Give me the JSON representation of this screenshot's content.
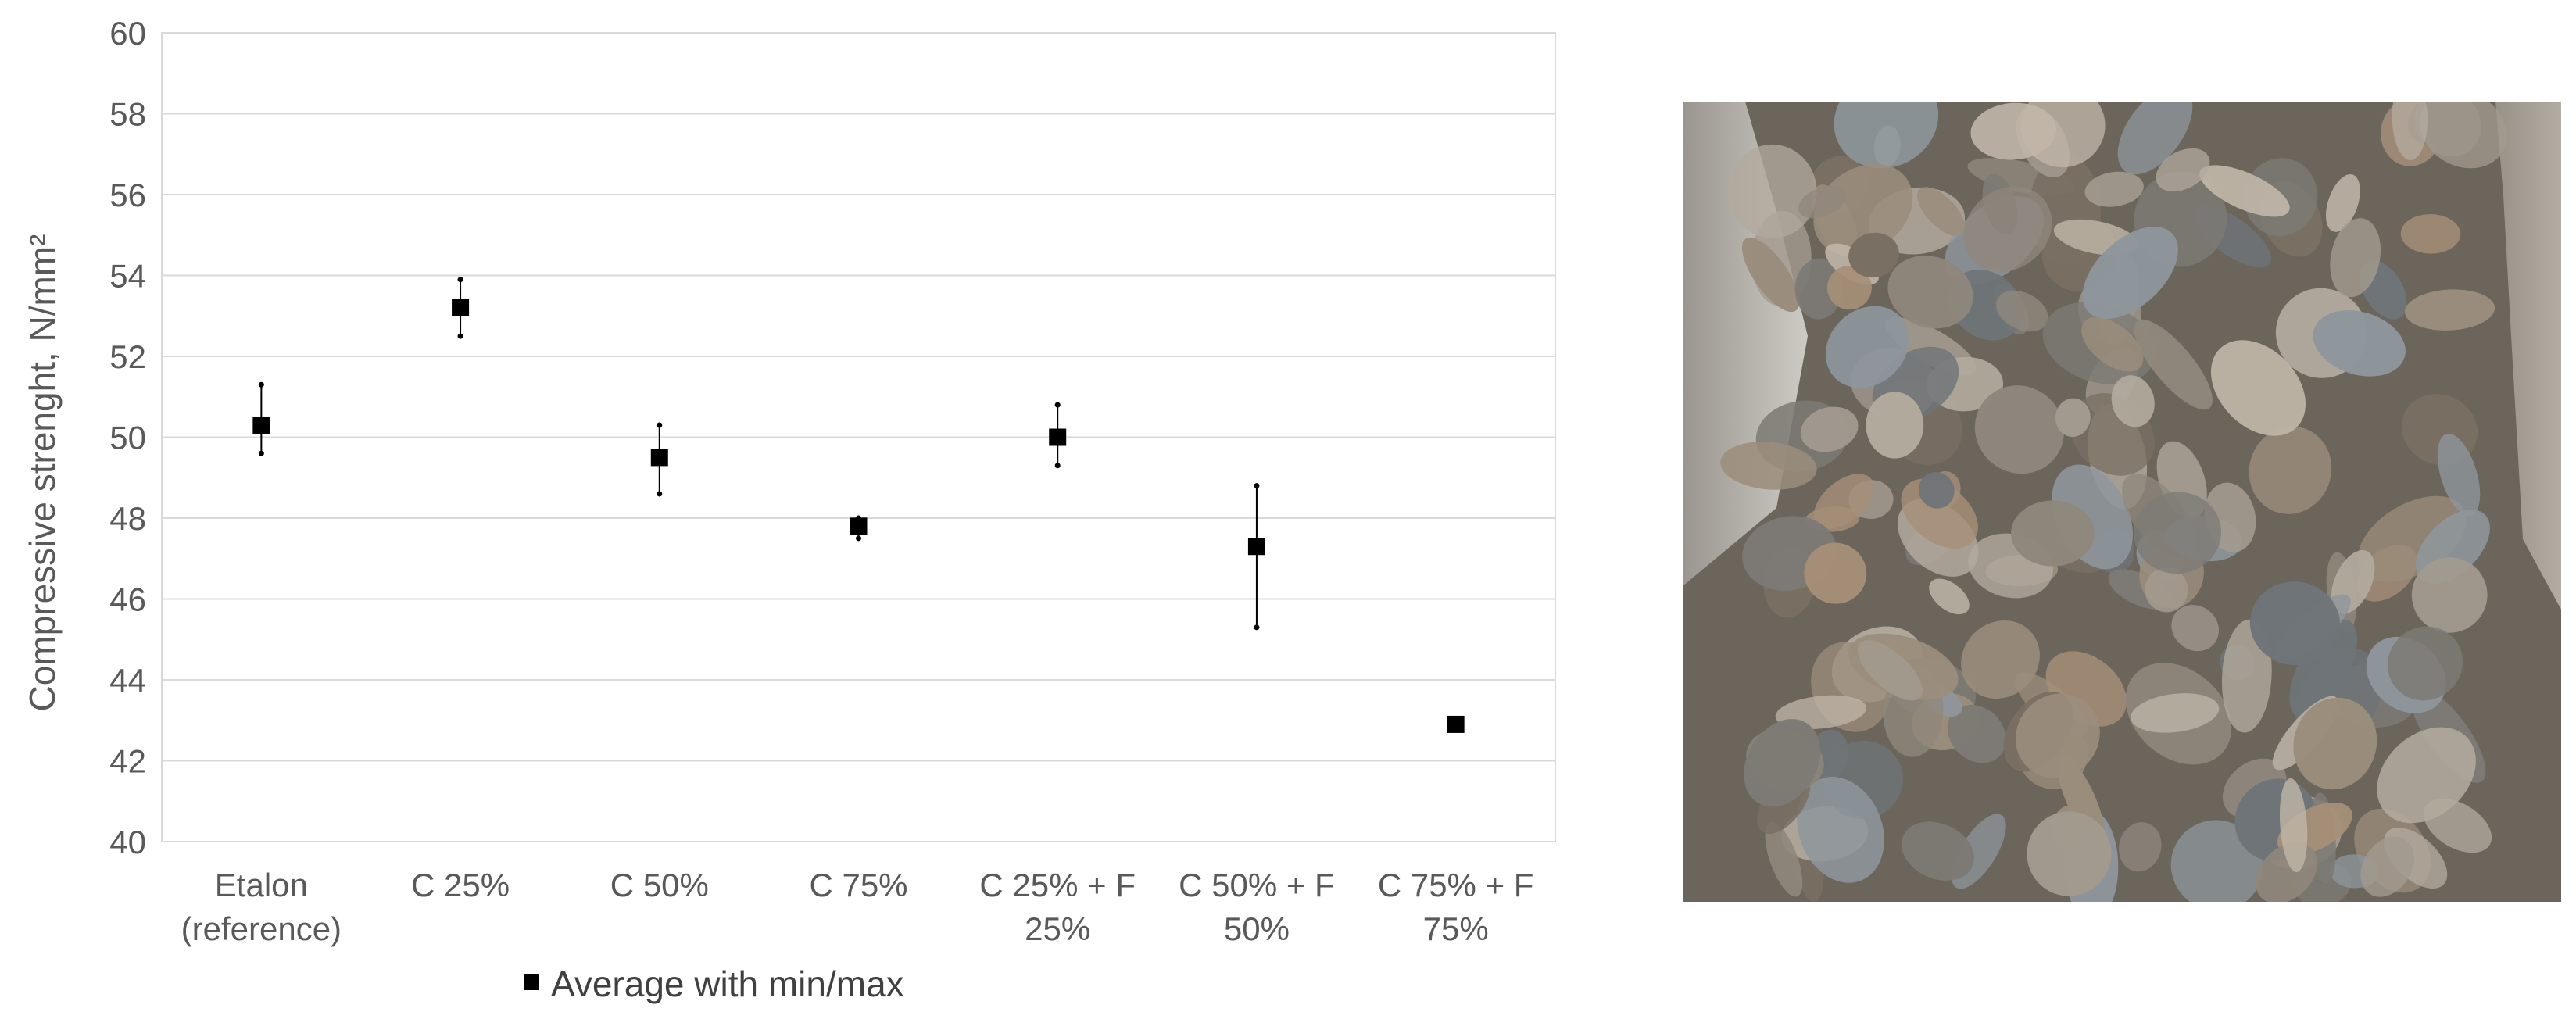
{
  "chart_data": {
    "type": "scatter",
    "title": "",
    "xlabel": "",
    "ylabel": "Compressive strenght, N/mm²",
    "ylim": [
      40,
      60
    ],
    "yticks": [
      40,
      42,
      44,
      46,
      48,
      50,
      52,
      54,
      56,
      58,
      60
    ],
    "grid": true,
    "legend_position": "bottom",
    "categories": [
      [
        "Etalon",
        "(reference)"
      ],
      [
        "C 25%"
      ],
      [
        "C 50%"
      ],
      [
        "C 75%"
      ],
      [
        "C 25% + F",
        "25%"
      ],
      [
        "C 50% + F",
        "50%"
      ],
      [
        "C 75% + F",
        "75%"
      ]
    ],
    "series": [
      {
        "name": "Average with min/max",
        "marker": "square",
        "color": "#000000",
        "values": [
          50.3,
          53.2,
          49.5,
          47.8,
          50.0,
          47.3,
          42.9
        ],
        "min": [
          49.6,
          52.5,
          48.6,
          47.5,
          49.3,
          45.3,
          42.8
        ],
        "max": [
          51.3,
          53.9,
          50.3,
          48.0,
          50.8,
          48.8,
          43.0
        ]
      }
    ]
  },
  "colors": {
    "grid": "#d9d9d9",
    "axis": "#bfbfbf",
    "text": "#595959",
    "marker": "#000000"
  }
}
